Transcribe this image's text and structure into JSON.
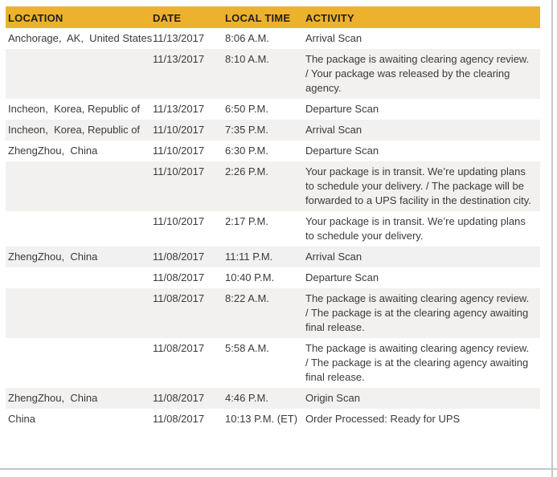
{
  "table": {
    "columns": [
      {
        "key": "location",
        "label": "LOCATION"
      },
      {
        "key": "date",
        "label": "DATE"
      },
      {
        "key": "time",
        "label": "LOCAL TIME"
      },
      {
        "key": "activity",
        "label": "ACTIVITY"
      }
    ],
    "rows": [
      {
        "location": "Anchorage,  AK,  United States",
        "date": "11/13/2017",
        "time": "8:06 A.M.",
        "activity": "Arrival Scan"
      },
      {
        "location": "",
        "date": "11/13/2017",
        "time": "8:10 A.M.",
        "activity": "The package is awaiting clearing agency review. / Your package was released by the clearing agency."
      },
      {
        "location": "Incheon,  Korea, Republic of",
        "date": "11/13/2017",
        "time": "6:50 P.M.",
        "activity": "Departure Scan"
      },
      {
        "location": "Incheon,  Korea, Republic of",
        "date": "11/10/2017",
        "time": "7:35 P.M.",
        "activity": "Arrival Scan"
      },
      {
        "location": "ZhengZhou,  China",
        "date": "11/10/2017",
        "time": "6:30 P.M.",
        "activity": "Departure Scan"
      },
      {
        "location": "",
        "date": "11/10/2017",
        "time": "2:26 P.M.",
        "activity": "Your package is in transit. We’re updating plans to schedule your delivery. / The package will be forwarded to a UPS facility in the destination city."
      },
      {
        "location": "",
        "date": "11/10/2017",
        "time": "2:17 P.M.",
        "activity": "Your package is in transit. We’re updating plans to schedule your delivery."
      },
      {
        "location": "ZhengZhou,  China",
        "date": "11/08/2017",
        "time": "11:11 P.M.",
        "activity": "Arrival Scan"
      },
      {
        "location": "",
        "date": "11/08/2017",
        "time": "10:40 P.M.",
        "activity": "Departure Scan"
      },
      {
        "location": "",
        "date": "11/08/2017",
        "time": "8:22 A.M.",
        "activity": "The package is awaiting clearing agency review. / The package is at the clearing agency awaiting final release."
      },
      {
        "location": "",
        "date": "11/08/2017",
        "time": "5:58 A.M.",
        "activity": "The package is awaiting clearing agency review. / The package is at the clearing agency awaiting final release."
      },
      {
        "location": "ZhengZhou,  China",
        "date": "11/08/2017",
        "time": "4:46 P.M.",
        "activity": "Origin Scan"
      },
      {
        "location": "China",
        "date": "11/08/2017",
        "time": "10:13 P.M. (ET)",
        "activity": "Order Processed: Ready for UPS"
      }
    ]
  },
  "colors": {
    "header_bg": "#ECB22D",
    "header_text": "#231F1C",
    "row_alt_bg": "#F2F1EF",
    "text": "#3A3A3A",
    "border": "#C6C6C6"
  }
}
